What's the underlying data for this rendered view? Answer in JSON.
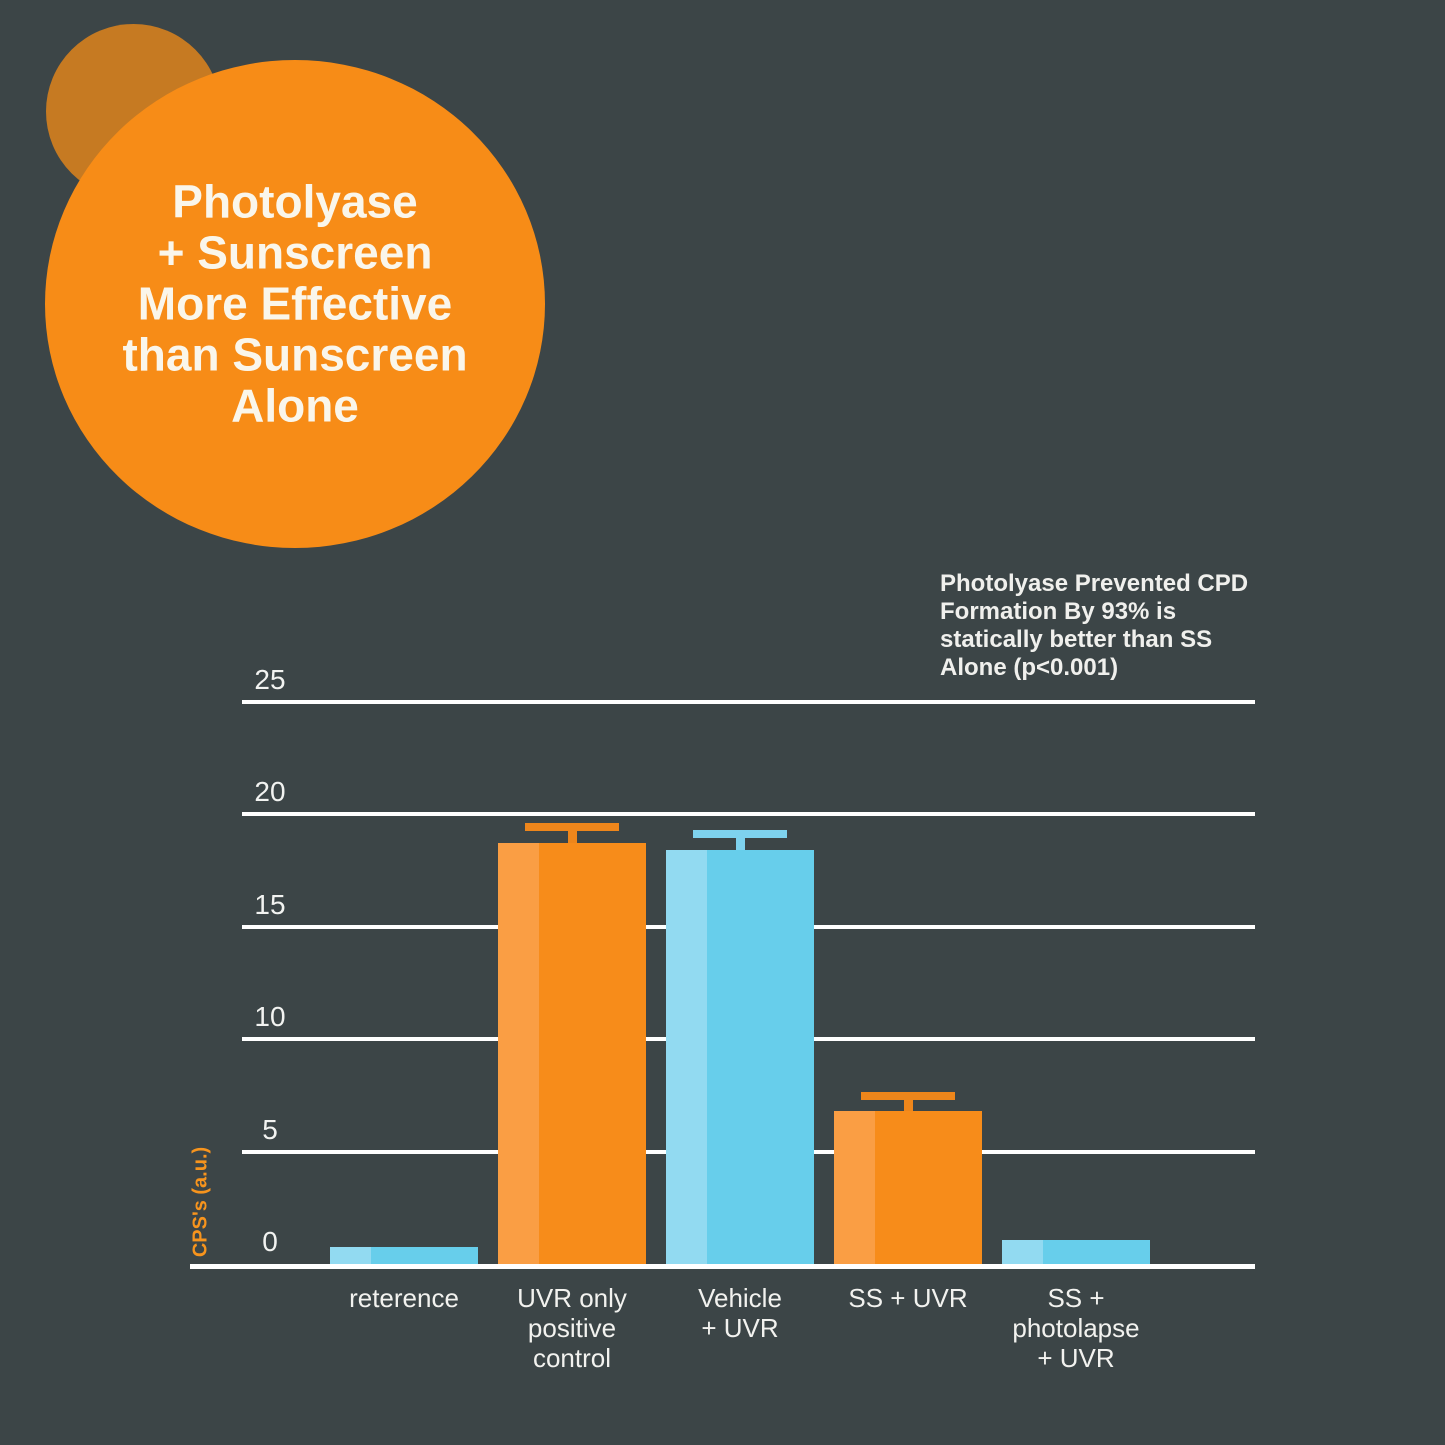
{
  "page": {
    "background_color": "#3C4547"
  },
  "badge": {
    "lines": [
      "Photolyase",
      "+ Sunscreen",
      "More Effective",
      "than Sunscreen",
      "Alone"
    ],
    "circle_color": "#F78C17",
    "sun_circle_color": "#C67A22",
    "text_color": "#FAF6EB"
  },
  "annotation": {
    "lines": [
      "Photolyase Prevented CPD",
      "Formation By 93% is",
      "statically better than SS",
      "Alone (p<0.001)"
    ],
    "color": "#F0F0ED"
  },
  "chart_data": {
    "type": "bar",
    "title": "",
    "xlabel": "",
    "ylabel": "CPS's (a.u.)",
    "categories": [
      "reterence",
      "UVR only positive control",
      "Vehicle + UVR",
      "SS + UVR",
      "SS + photolapse + UVR"
    ],
    "category_lines": [
      [
        "reterence"
      ],
      [
        "UVR only",
        "positive",
        "control"
      ],
      [
        "Vehicle",
        "+ UVR"
      ],
      [
        "SS + UVR"
      ],
      [
        "SS +",
        "photolapse",
        "+ UVR"
      ]
    ],
    "values": [
      0.75,
      18.7,
      18.4,
      6.8,
      1.05
    ],
    "errors": [
      null,
      0.9,
      0.9,
      0.85,
      null
    ],
    "bar_palette_keys": [
      "blue",
      "orange",
      "blue",
      "orange",
      "blue"
    ],
    "yticks": [
      0,
      5,
      10,
      15,
      20,
      25
    ],
    "ylim": [
      0,
      27
    ],
    "grid": true,
    "legend": "none",
    "palette": {
      "orange": {
        "body": "#F78C1A",
        "stripe": "#FA9E44",
        "error": "#EE861B"
      },
      "blue": {
        "body": "#67CEEB",
        "stripe": "#92DAF1",
        "error": "#7ED2EE"
      }
    },
    "grid_color": "#FFFFFF",
    "axis_color": "#FFFFFF",
    "tick_label_color": "#F2F3F1",
    "x_label_color": "#F2F2EF",
    "y_axis_title_color": "#F7941D"
  }
}
